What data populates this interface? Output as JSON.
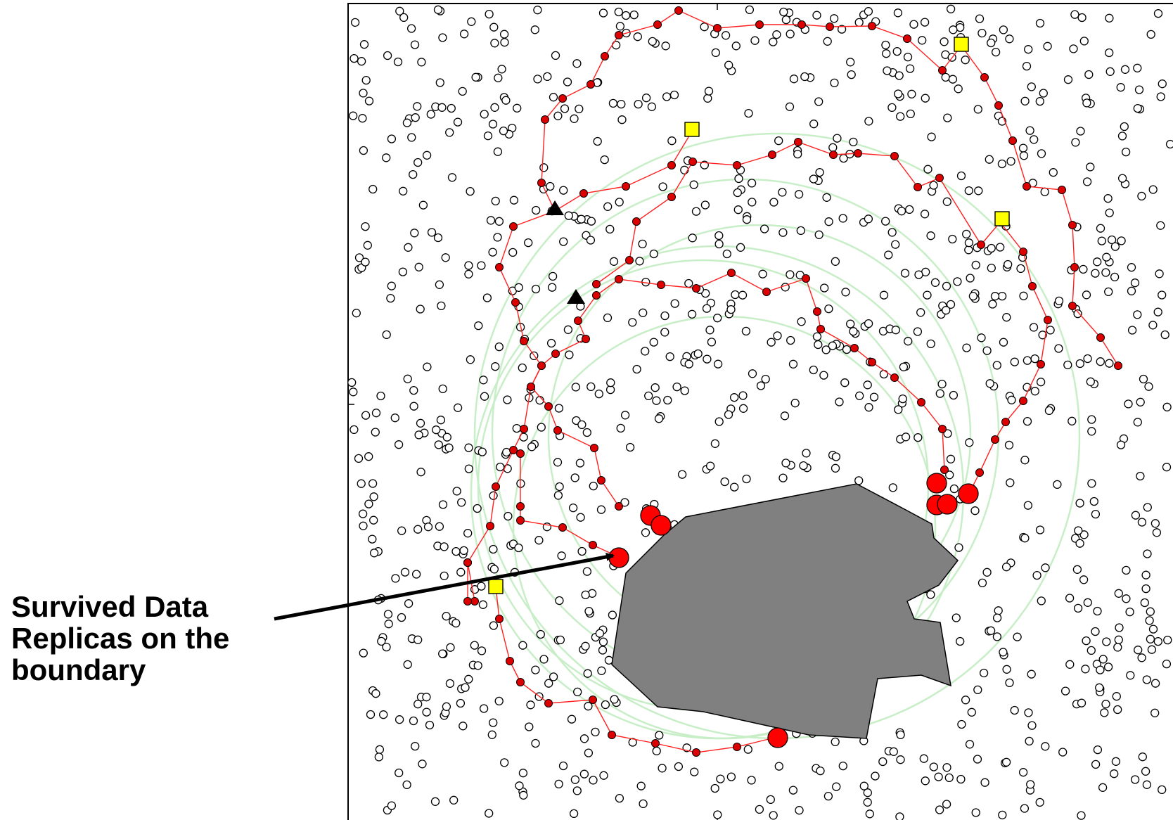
{
  "annotation": {
    "line1": "Survived Data",
    "line2": "Replicas on the",
    "line3": "boundary"
  },
  "colors": {
    "sensor_stroke": "#000000",
    "routing_path": "#ff2020",
    "path_node": "#dd0000",
    "survived_replica": "#ff0000",
    "anchor_square": "#ffff00",
    "ring": "#c8eec8",
    "failure_region": "#808080"
  },
  "icons": {
    "sensor_node": "circle-icon",
    "path_node": "filled-dot-icon",
    "survived_replica": "large-red-circle-icon",
    "anchor": "yellow-square-icon",
    "source": "black-triangle-icon",
    "pointer": "arrow-icon"
  }
}
